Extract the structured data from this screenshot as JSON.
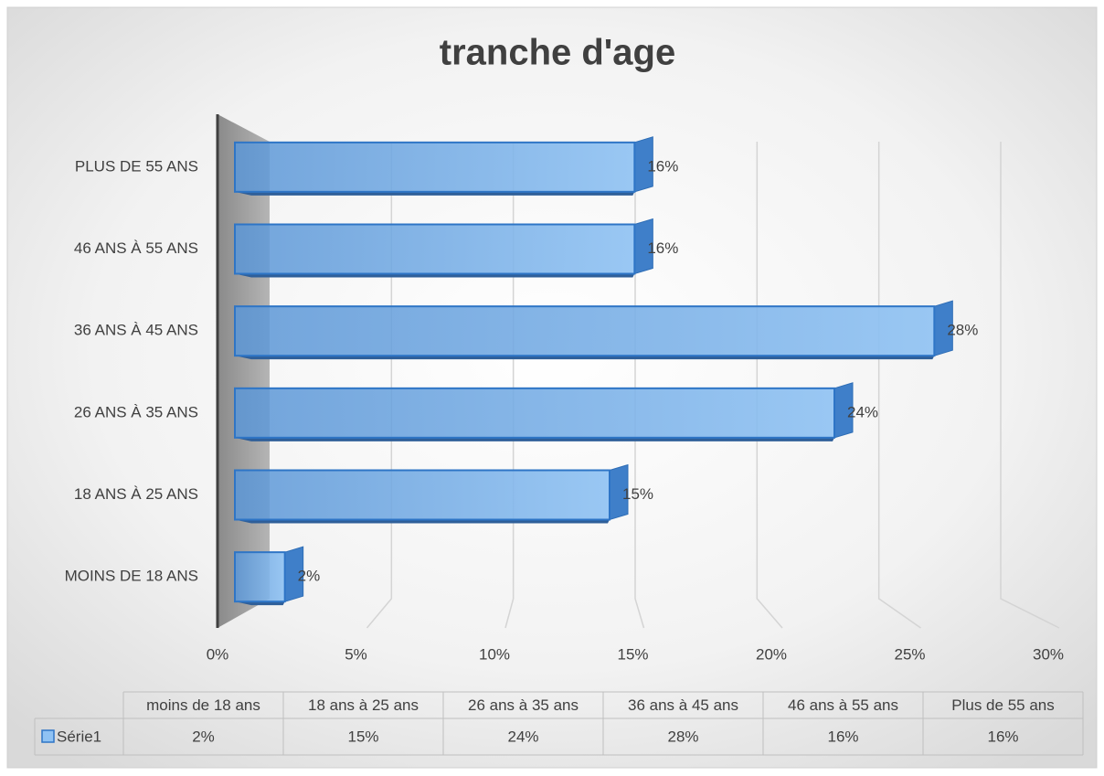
{
  "chart_data": {
    "type": "bar",
    "orientation": "horizontal",
    "title": "tranche d'age",
    "categories": [
      "MOINS DE 18 ANS",
      "18 ANS À 25 ANS",
      "26 ANS À 35 ANS",
      "36 ANS À 45 ANS",
      "46 ANS À 55 ANS",
      "PLUS DE 55 ANS"
    ],
    "series": [
      {
        "name": "Série1",
        "color": "#6fa8e6",
        "values": [
          2,
          15,
          24,
          28,
          16,
          16
        ],
        "value_labels": [
          "2%",
          "15%",
          "24%",
          "28%",
          "16%",
          "16%"
        ]
      }
    ],
    "xlim": [
      0,
      30
    ],
    "xticks": [
      {
        "value": 0,
        "label": "0%"
      },
      {
        "value": 5,
        "label": "5%"
      },
      {
        "value": 10,
        "label": "10%"
      },
      {
        "value": 15,
        "label": "15%"
      },
      {
        "value": 20,
        "label": "20%"
      },
      {
        "value": 25,
        "label": "25%"
      },
      {
        "value": 30,
        "label": "30%"
      }
    ],
    "grid": true,
    "data_table": {
      "headers": [
        "moins de 18 ans",
        "18 ans à 25 ans",
        "26 ans à 35 ans",
        "36 ans à 45 ans",
        "46 ans à 55 ans",
        "Plus de 55 ans"
      ]
    }
  }
}
